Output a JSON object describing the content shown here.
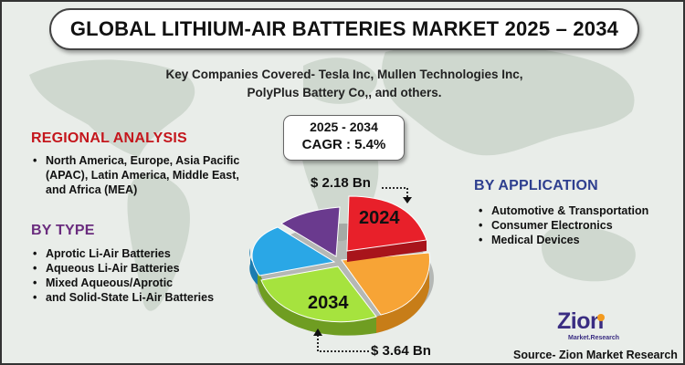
{
  "title": "GLOBAL LITHIUM-AIR BATTERIES MARKET 2025 – 2034",
  "key_companies": {
    "line1": "Key Companies Covered- Tesla Inc, Mullen Technologies Inc,",
    "line2": "PolyPlus Battery Co,, and others."
  },
  "cagr": {
    "years": "2025 - 2034",
    "value": "CAGR : 5.4%"
  },
  "regional": {
    "title": "REGIONAL ANALYSIS",
    "items": [
      "North America, Europe, Asia Pacific (APAC), Latin America, Middle East, and Africa (MEA)"
    ]
  },
  "by_type": {
    "title": "BY TYPE",
    "items": [
      "Aprotic Li-Air Batteries",
      "Aqueous Li-Air Batteries",
      "Mixed Aqueous/Aprotic",
      "and Solid-State Li-Air Batteries"
    ]
  },
  "by_application": {
    "title": "BY APPLICATION",
    "items": [
      "Automotive & Transportation",
      "Consumer Electronics",
      "Medical Devices"
    ]
  },
  "market_values": {
    "value_2024": "$ 2.18 Bn",
    "value_2034": "$ 3.64 Bn",
    "year_2024": "2024",
    "year_2034": "2034"
  },
  "logo": {
    "name": "Zion",
    "tagline": "Market.Research"
  },
  "source": "Source- Zion Market Research",
  "colors": {
    "regional_title": "#c4161c",
    "type_title": "#6a2c7e",
    "application_title": "#2e3f8f",
    "slice_red": "#e8202a",
    "slice_orange": "#f7a436",
    "slice_green": "#a6e33e",
    "slice_blue": "#2aa7e6",
    "slice_purple": "#6a3a8e"
  }
}
